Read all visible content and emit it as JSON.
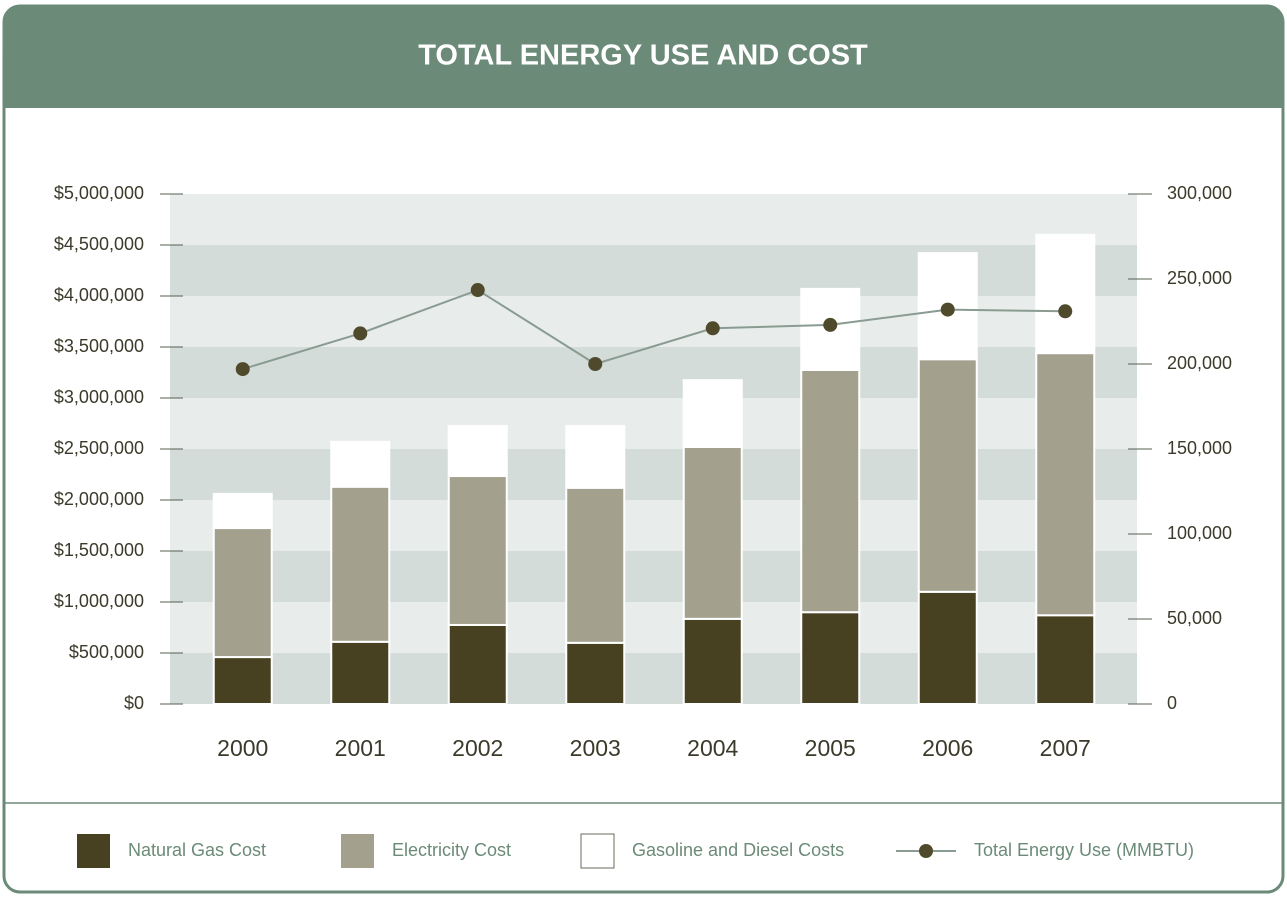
{
  "chart_data": {
    "type": "bar",
    "title": "TOTAL ENERGY USE AND COST",
    "categories": [
      "2000",
      "2001",
      "2002",
      "2003",
      "2004",
      "2005",
      "2006",
      "2007"
    ],
    "series": [
      {
        "name": "Natural Gas Cost",
        "color": "#474021",
        "values": [
          460000,
          610000,
          775000,
          600000,
          835000,
          900000,
          1100000,
          870000
        ]
      },
      {
        "name": "Electricity Cost",
        "color": "#a3a08e",
        "values": [
          1265000,
          1520000,
          1460000,
          1520000,
          1685000,
          2375000,
          2280000,
          2570000
        ]
      },
      {
        "name": "Gasoline and Diesel Costs",
        "color": "#ffffff",
        "values": [
          335000,
          440000,
          490000,
          605000,
          655000,
          795000,
          1040000,
          1160000
        ]
      },
      {
        "name": "Total Energy Use (MMBTU)",
        "color": "#8a9b92",
        "type": "line",
        "axis": "y2",
        "values": [
          197000,
          218000,
          243500,
          200000,
          221000,
          223000,
          232000,
          231000
        ]
      }
    ],
    "ylim": [
      0,
      5000000
    ],
    "yticks": [
      {
        "value": 0,
        "label": "$0"
      },
      {
        "value": 500000,
        "label": "$500,000"
      },
      {
        "value": 1000000,
        "label": "$1,000,000"
      },
      {
        "value": 1500000,
        "label": "$1,500,000"
      },
      {
        "value": 2000000,
        "label": "$2,000,000"
      },
      {
        "value": 2500000,
        "label": "$2,500,000"
      },
      {
        "value": 3000000,
        "label": "$3,000,000"
      },
      {
        "value": 3500000,
        "label": "$3,500,000"
      },
      {
        "value": 4000000,
        "label": "$4,000,000"
      },
      {
        "value": 4500000,
        "label": "$4,500,000"
      },
      {
        "value": 5000000,
        "label": "$5,000,000"
      }
    ],
    "y2lim": [
      0,
      300000
    ],
    "y2ticks": [
      0,
      {
        "value": 50000,
        "label": "50,000"
      },
      {
        "value": 100000,
        "label": "100,000"
      },
      {
        "value": 150000,
        "label": "150,000"
      },
      {
        "value": 200000,
        "label": "200,000"
      },
      {
        "value": 250000,
        "label": "250,000"
      },
      {
        "value": 300000,
        "label": "300,000"
      }
    ],
    "stacked": true,
    "legend": "bottom"
  }
}
